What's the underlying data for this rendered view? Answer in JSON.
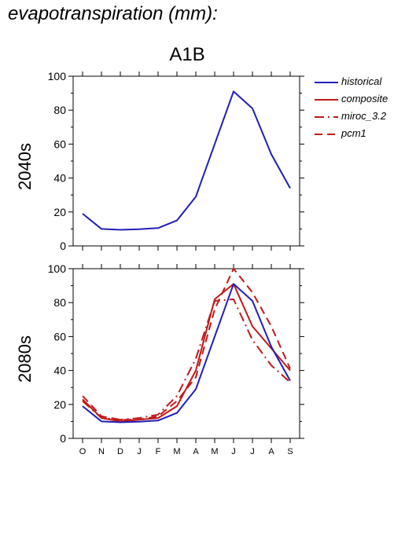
{
  "figure": {
    "title": "evapotranspiration (mm):",
    "scenario": "A1B"
  },
  "legend": [
    {
      "label": "historical",
      "color": "#1f1fb4",
      "dash": "solid"
    },
    {
      "label": "composite",
      "color": "#c01818",
      "dash": "solid"
    },
    {
      "label": "miroc_3.2",
      "color": "#c01818",
      "dash": "dashdot"
    },
    {
      "label": "pcm1",
      "color": "#c01818",
      "dash": "dashed"
    }
  ],
  "chart_data": [
    {
      "type": "line",
      "ylabel": "2040s",
      "ylim": [
        0,
        100
      ],
      "yticks": [
        0,
        20,
        40,
        60,
        80,
        100
      ],
      "categories": [
        "O",
        "N",
        "D",
        "J",
        "F",
        "M",
        "A",
        "M",
        "J",
        "J",
        "A",
        "S"
      ],
      "series": [
        {
          "name": "historical",
          "values": [
            19,
            10,
            9.5,
            9.8,
            10.5,
            15,
            29,
            60,
            91,
            81,
            54,
            34
          ]
        }
      ]
    },
    {
      "type": "line",
      "ylabel": "2080s",
      "ylim": [
        0,
        100
      ],
      "yticks": [
        0,
        20,
        40,
        60,
        80,
        100
      ],
      "categories": [
        "O",
        "N",
        "D",
        "J",
        "F",
        "M",
        "A",
        "M",
        "J",
        "J",
        "A",
        "S"
      ],
      "series": [
        {
          "name": "historical",
          "values": [
            19,
            10,
            9.5,
            9.8,
            10.5,
            15,
            29,
            60,
            91,
            81,
            54,
            34
          ]
        },
        {
          "name": "composite",
          "values": [
            23,
            12,
            10,
            11,
            12,
            19,
            40,
            82,
            91,
            66,
            53,
            40
          ]
        },
        {
          "name": "miroc_3.2",
          "values": [
            22,
            12,
            11,
            12,
            14,
            25,
            47,
            81,
            82,
            58,
            43,
            33
          ]
        },
        {
          "name": "pcm1",
          "values": [
            25,
            13,
            11,
            11,
            13,
            22,
            36,
            76,
            100,
            86,
            66,
            41
          ]
        }
      ],
      "xlabel": ""
    }
  ]
}
